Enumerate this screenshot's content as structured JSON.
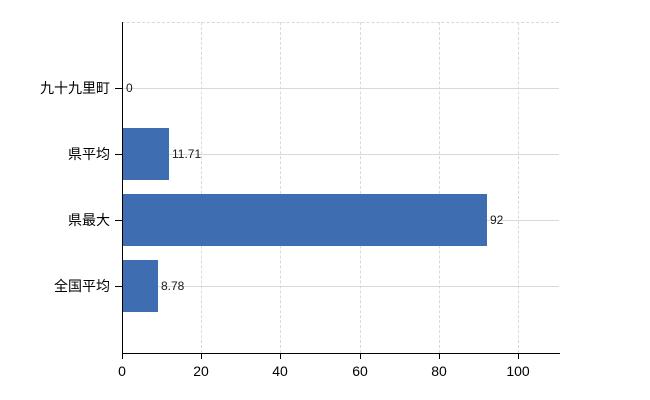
{
  "chart_data": {
    "type": "bar",
    "orientation": "horizontal",
    "title": "",
    "xlabel": "",
    "ylabel": "",
    "categories": [
      "九十九里町",
      "県平均",
      "県最大",
      "全国平均"
    ],
    "values": [
      0,
      11.71,
      92,
      8.78
    ],
    "value_labels": [
      "0",
      "11.71",
      "92",
      "8.78"
    ],
    "x_ticks": [
      "0",
      "20",
      "40",
      "60",
      "80",
      "100"
    ],
    "x_tick_values": [
      0,
      20,
      40,
      60,
      80,
      100
    ],
    "xlim": [
      0,
      110.4
    ],
    "grid": {
      "vertical_gridlines": "dashed",
      "horizontal_category_lines": "solid",
      "top_border": "dashed"
    },
    "legend": null,
    "colors": {
      "bar": "#3f6db2",
      "axis": "#000000",
      "gridline": "#d9d9d9",
      "text": "#000000",
      "background": "#ffffff"
    }
  }
}
